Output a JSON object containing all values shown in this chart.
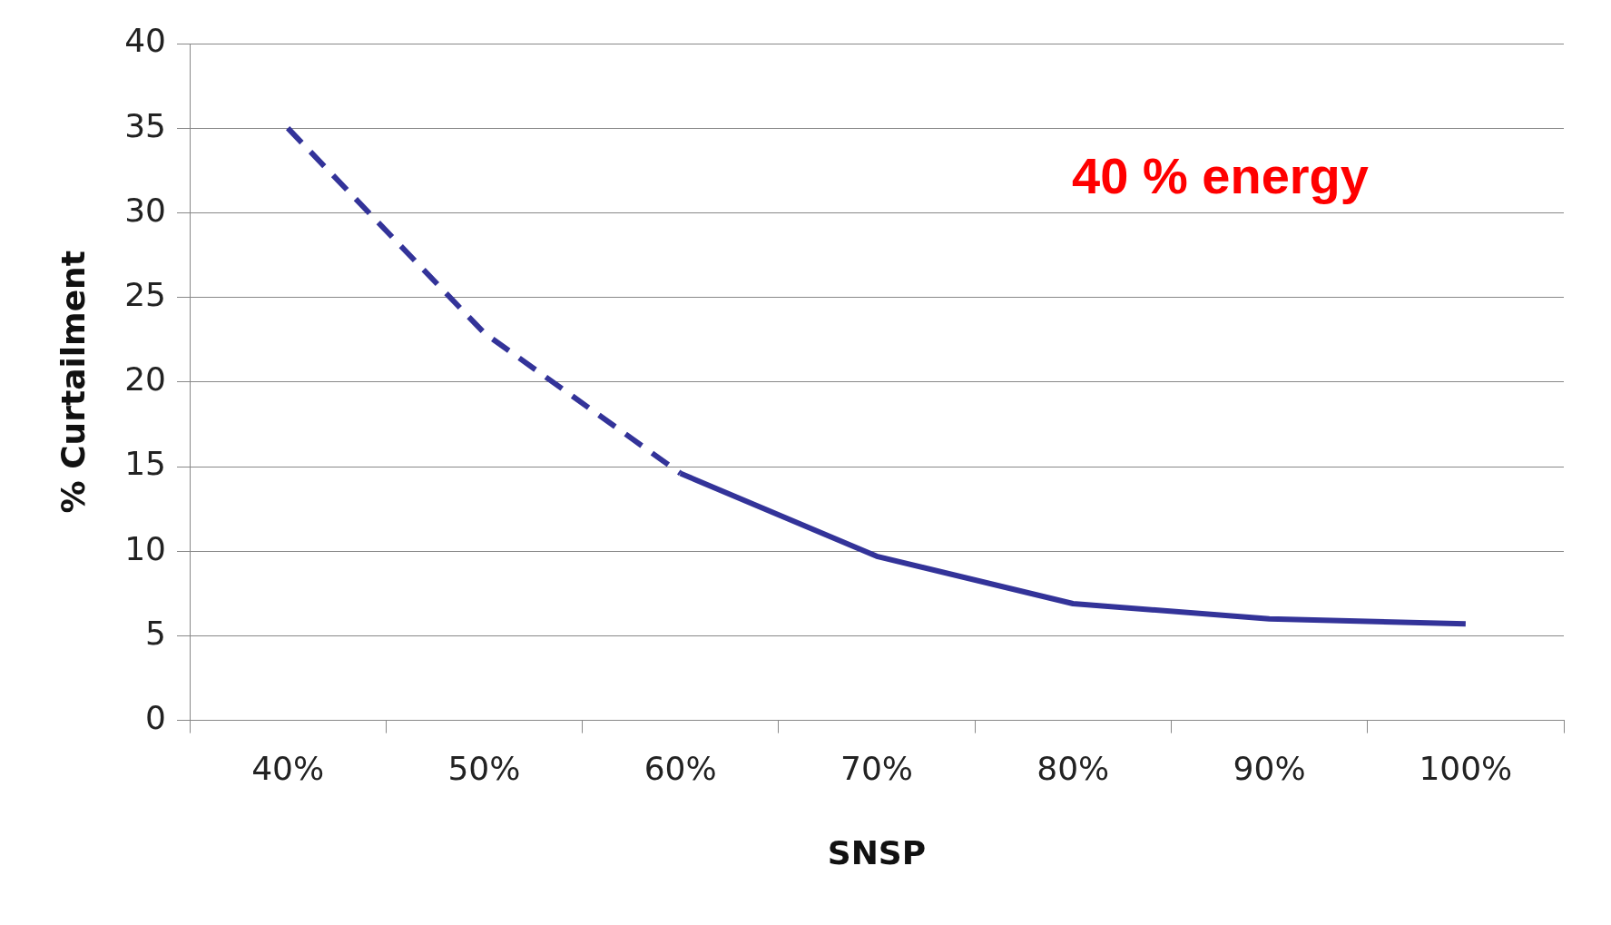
{
  "chart_data": {
    "type": "line",
    "xlabel": "SNSP",
    "ylabel": "% Curtailment",
    "categories": [
      "40%",
      "50%",
      "60%",
      "70%",
      "80%",
      "90%",
      "100%"
    ],
    "series": [
      {
        "color": "#333399",
        "line_style": "dashed",
        "values": [
          35,
          22.9,
          14.6,
          null,
          null,
          null,
          null
        ]
      },
      {
        "color": "#333399",
        "line_style": "solid",
        "values": [
          null,
          null,
          14.6,
          9.7,
          6.9,
          6.0,
          5.7
        ]
      }
    ],
    "ylim": [
      0,
      40
    ],
    "yticks": [
      0,
      5,
      10,
      15,
      20,
      25,
      30,
      35,
      40
    ],
    "grid": "y",
    "legend": false,
    "marker": "none",
    "annotations": [
      "40 % energy"
    ]
  }
}
